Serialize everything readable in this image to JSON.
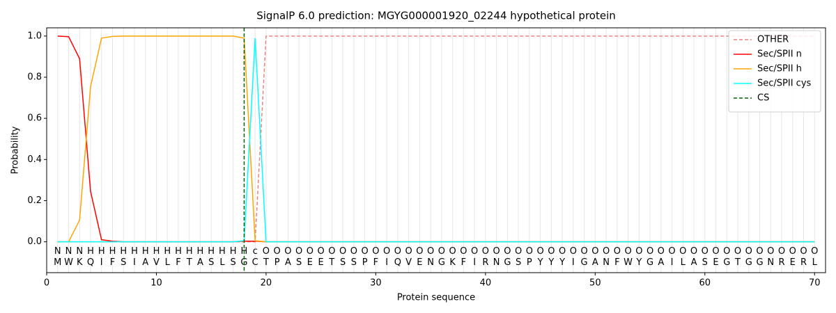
{
  "chart_data": {
    "type": "line",
    "title": "SignalP 6.0 prediction: MGYG000001920_02244 hypothetical protein",
    "x_label": "Protein sequence",
    "y_label": "Probability",
    "xlim": [
      0,
      71
    ],
    "ylim": [
      -0.15,
      1.04
    ],
    "xticks": [
      0,
      10,
      20,
      30,
      40,
      50,
      60,
      70
    ],
    "yticks": [
      {
        "value": 0,
        "label": "0.0"
      },
      {
        "value": 0.2,
        "label": "0.2"
      },
      {
        "value": 0.4,
        "label": "0.4"
      },
      {
        "value": 0.6,
        "label": "0.6"
      },
      {
        "value": 0.8,
        "label": "0.8"
      },
      {
        "value": 1,
        "label": "1.0"
      }
    ],
    "legend": "upper right",
    "x": [
      1,
      2,
      3,
      4,
      5,
      6,
      7,
      8,
      9,
      10,
      11,
      12,
      13,
      14,
      15,
      16,
      17,
      18,
      19,
      20,
      21,
      22,
      23,
      24,
      25,
      26,
      27,
      28,
      29,
      30,
      31,
      32,
      33,
      34,
      35,
      36,
      37,
      38,
      39,
      40,
      41,
      42,
      43,
      44,
      45,
      46,
      47,
      48,
      49,
      50,
      51,
      52,
      53,
      54,
      55,
      56,
      57,
      58,
      59,
      60,
      61,
      62,
      63,
      64,
      65,
      66,
      67,
      68,
      69,
      70
    ],
    "series": [
      {
        "name": "OTHER",
        "color": "#f08080",
        "dashed": true,
        "values": [
          0,
          0,
          0,
          0,
          0,
          0,
          0,
          0,
          0,
          0,
          0,
          0,
          0,
          0,
          0,
          0,
          0,
          0,
          0,
          1,
          1,
          1,
          1,
          1,
          1,
          1,
          1,
          1,
          1,
          1,
          1,
          1,
          1,
          1,
          1,
          1,
          1,
          1,
          1,
          1,
          1,
          1,
          1,
          1,
          1,
          1,
          1,
          1,
          1,
          1,
          1,
          1,
          1,
          1,
          1,
          1,
          1,
          1,
          1,
          1,
          1,
          1,
          1,
          1,
          1,
          1,
          1,
          1,
          1,
          1
        ]
      },
      {
        "name": "Sec/SPII n",
        "color": "#ff0000",
        "dashed": false,
        "values": [
          1,
          0.997,
          0.89,
          0.245,
          0.01,
          0.003,
          0,
          0,
          0,
          0,
          0,
          0,
          0,
          0,
          0,
          0,
          0,
          0.003,
          0.003,
          0,
          0,
          0,
          0,
          0,
          0,
          0,
          0,
          0,
          0,
          0,
          0,
          0,
          0,
          0,
          0,
          0,
          0,
          0,
          0,
          0,
          0,
          0,
          0,
          0,
          0,
          0,
          0,
          0,
          0,
          0,
          0,
          0,
          0,
          0,
          0,
          0,
          0,
          0,
          0,
          0,
          0,
          0,
          0,
          0,
          0,
          0,
          0,
          0,
          0,
          0
        ]
      },
      {
        "name": "Sec/SPII h",
        "color": "#ffa500",
        "dashed": false,
        "values": [
          0,
          0,
          0.105,
          0.755,
          0.99,
          0.998,
          1,
          1,
          1,
          1,
          1,
          1,
          1,
          1,
          1,
          1,
          1,
          0.99,
          0.005,
          0,
          0,
          0,
          0,
          0,
          0,
          0,
          0,
          0,
          0,
          0,
          0,
          0,
          0,
          0,
          0,
          0,
          0,
          0,
          0,
          0,
          0,
          0,
          0,
          0,
          0,
          0,
          0,
          0,
          0,
          0,
          0,
          0,
          0,
          0,
          0,
          0,
          0,
          0,
          0,
          0,
          0,
          0,
          0,
          0,
          0,
          0,
          0,
          0,
          0,
          0
        ]
      },
      {
        "name": "Sec/SPII cys",
        "color": "#00ffff",
        "dashed": false,
        "values": [
          0,
          0,
          0,
          0,
          0,
          0,
          0,
          0,
          0,
          0,
          0,
          0,
          0,
          0,
          0,
          0,
          0,
          0.005,
          0.99,
          0,
          0,
          0,
          0,
          0,
          0,
          0,
          0,
          0,
          0,
          0,
          0,
          0,
          0,
          0,
          0,
          0,
          0,
          0,
          0,
          0,
          0,
          0,
          0,
          0,
          0,
          0,
          0,
          0,
          0,
          0,
          0,
          0,
          0,
          0,
          0,
          0,
          0,
          0,
          0,
          0,
          0,
          0,
          0,
          0,
          0,
          0,
          0,
          0,
          0,
          0
        ]
      }
    ],
    "markers": [
      {
        "name": "CS",
        "x": 18,
        "color": "#006400"
      }
    ],
    "sequence": [
      "M",
      "W",
      "K",
      "Q",
      "I",
      "F",
      "S",
      "I",
      "A",
      "V",
      "L",
      "F",
      "T",
      "A",
      "S",
      "L",
      "S",
      "G",
      "C",
      "T",
      "P",
      "A",
      "S",
      "E",
      "E",
      "T",
      "S",
      "S",
      "P",
      "F",
      "I",
      "Q",
      "V",
      "E",
      "N",
      "G",
      "K",
      "F",
      "I",
      "R",
      "N",
      "G",
      "S",
      "P",
      "Y",
      "Y",
      "Y",
      "I",
      "G",
      "A",
      "N",
      "F",
      "W",
      "Y",
      "G",
      "A",
      "I",
      "L",
      "A",
      "S",
      "E",
      "G",
      "T",
      "G",
      "G",
      "N",
      "R",
      "E",
      "R",
      "L"
    ],
    "residue_labels": [
      "N",
      "N",
      "N",
      "H",
      "H",
      "H",
      "H",
      "H",
      "H",
      "H",
      "H",
      "H",
      "H",
      "H",
      "H",
      "H",
      "H",
      "H",
      "c",
      "O",
      "O",
      "O",
      "O",
      "O",
      "O",
      "O",
      "O",
      "O",
      "O",
      "O",
      "O",
      "O",
      "O",
      "O",
      "O",
      "O",
      "O",
      "O",
      "O",
      "O",
      "O",
      "O",
      "O",
      "O",
      "O",
      "O",
      "O",
      "O",
      "O",
      "O",
      "O",
      "O",
      "O",
      "O",
      "O",
      "O",
      "O",
      "O",
      "O",
      "O",
      "O",
      "O",
      "O",
      "O",
      "O",
      "O",
      "O",
      "O",
      "O",
      "O"
    ],
    "label_colors": {
      "N": "#ff0000",
      "H": "#ffa500",
      "c": "#00cccc",
      "O": "#808080"
    }
  }
}
